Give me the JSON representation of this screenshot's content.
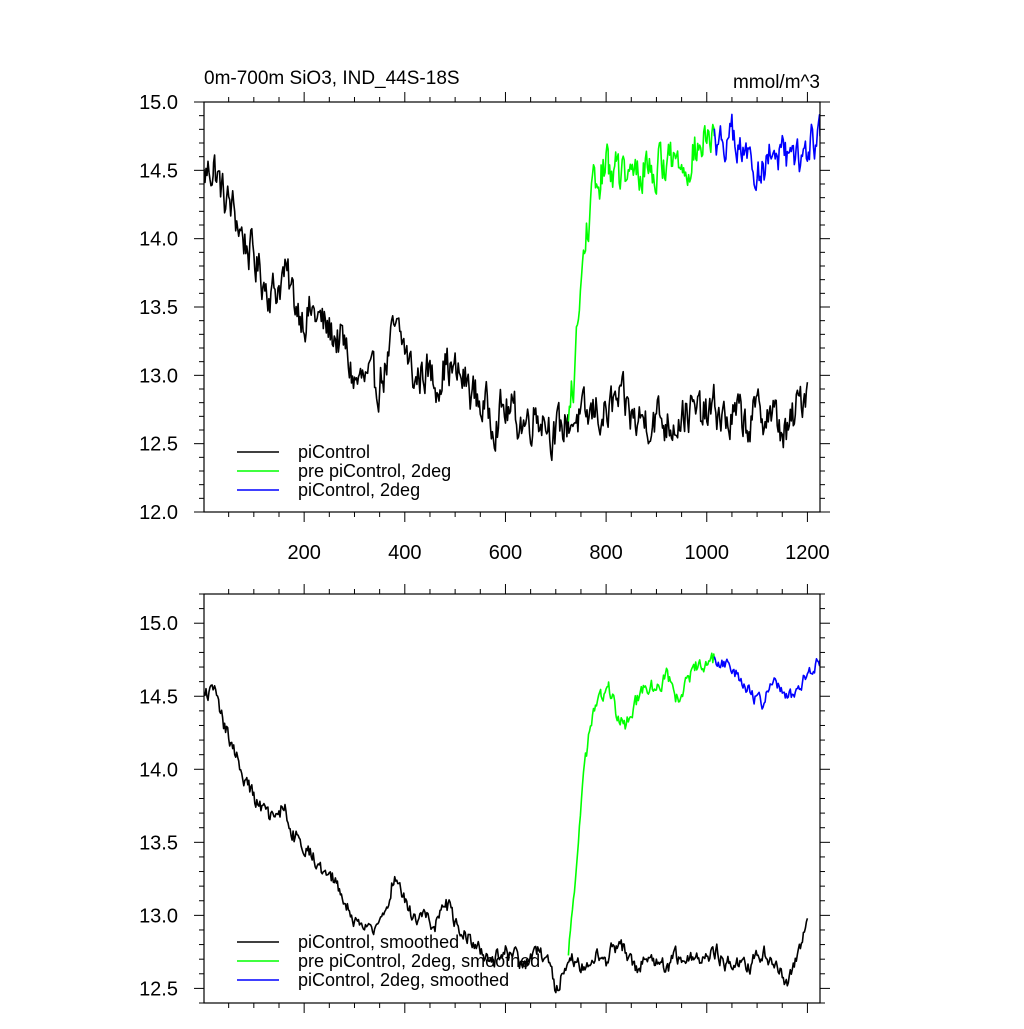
{
  "figure": {
    "title_left": "0m-700m SiO3, IND_44S-18S",
    "title_right": "mmol/m^3"
  },
  "chart_data": [
    {
      "type": "line",
      "panel": "top",
      "title": "0m-700m SiO3, IND_44S-18S",
      "unit": "mmol/m^3",
      "xlim": [
        1,
        1225
      ],
      "ylim": [
        12.0,
        15.0
      ],
      "xticks": [
        200,
        400,
        600,
        800,
        1000,
        1200
      ],
      "yticks": [
        12.0,
        12.5,
        13.0,
        13.5,
        14.0,
        14.5,
        15.0
      ],
      "ytick_labels": [
        "12.0",
        "12.5",
        "13.0",
        "13.5",
        "14.0",
        "14.5",
        "15.0"
      ],
      "legend_position": "bottom-left",
      "series": [
        {
          "name": "piControl",
          "color": "#000000",
          "noise": 0.14,
          "x": [
            1,
            20,
            40,
            60,
            80,
            100,
            120,
            140,
            160,
            180,
            200,
            220,
            240,
            260,
            280,
            300,
            320,
            340,
            360,
            380,
            400,
            420,
            440,
            460,
            480,
            500,
            520,
            540,
            560,
            580,
            600,
            620,
            640,
            660,
            680,
            700,
            720,
            740,
            760,
            780,
            800,
            820,
            840,
            860,
            880,
            900,
            920,
            940,
            960,
            980,
            1000,
            1020,
            1040,
            1060,
            1080,
            1100,
            1120,
            1140,
            1160,
            1180,
            1200
          ],
          "values": [
            14.45,
            14.55,
            14.3,
            14.2,
            14.0,
            13.85,
            13.7,
            13.6,
            13.75,
            13.55,
            13.45,
            13.45,
            13.35,
            13.3,
            13.2,
            12.95,
            12.95,
            12.9,
            13.05,
            13.3,
            13.2,
            12.95,
            13.05,
            12.95,
            13.1,
            13.0,
            12.95,
            12.85,
            12.75,
            12.7,
            12.75,
            12.7,
            12.65,
            12.75,
            12.7,
            12.55,
            12.65,
            12.7,
            12.65,
            12.75,
            12.7,
            12.8,
            12.75,
            12.65,
            12.7,
            12.7,
            12.65,
            12.7,
            12.75,
            12.7,
            12.7,
            12.75,
            12.65,
            12.7,
            12.65,
            12.7,
            12.75,
            12.65,
            12.55,
            12.75,
            12.95
          ]
        },
        {
          "name": "pre piControl, 2deg",
          "color": "#00ff00",
          "noise": 0.14,
          "x": [
            725,
            735,
            745,
            755,
            765,
            775,
            790,
            805,
            820,
            840,
            860,
            880,
            900,
            920,
            940,
            960,
            980,
            1000,
            1015
          ],
          "values": [
            12.6,
            12.95,
            13.4,
            13.85,
            14.15,
            14.3,
            14.45,
            14.55,
            14.5,
            14.4,
            14.45,
            14.55,
            14.5,
            14.6,
            14.55,
            14.6,
            14.65,
            14.7,
            14.75
          ]
        },
        {
          "name": "piControl, 2deg",
          "color": "#0000ff",
          "noise": 0.12,
          "x": [
            1015,
            1030,
            1050,
            1070,
            1090,
            1110,
            1130,
            1150,
            1170,
            1190,
            1210,
            1225
          ],
          "values": [
            14.75,
            14.7,
            14.75,
            14.6,
            14.55,
            14.5,
            14.65,
            14.6,
            14.5,
            14.6,
            14.7,
            14.75
          ]
        }
      ]
    },
    {
      "type": "line",
      "panel": "bottom",
      "xlim": [
        1,
        1225
      ],
      "ylim": [
        12.4,
        15.2
      ],
      "xticks": [
        200,
        400,
        600,
        800,
        1000,
        1200
      ],
      "yticks": [
        12.5,
        13.0,
        13.5,
        14.0,
        14.5,
        15.0
      ],
      "ytick_labels": [
        "12.5",
        "13.0",
        "13.5",
        "14.0",
        "14.5",
        "15.0"
      ],
      "legend_position": "bottom-left",
      "series": [
        {
          "name": "piControl, smoothed",
          "color": "#000000",
          "noise": 0.05,
          "x": [
            1,
            20,
            40,
            60,
            80,
            100,
            120,
            140,
            160,
            180,
            200,
            220,
            240,
            260,
            280,
            300,
            320,
            340,
            360,
            380,
            400,
            420,
            440,
            460,
            480,
            500,
            520,
            540,
            560,
            580,
            600,
            620,
            640,
            660,
            680,
            700,
            720,
            740,
            760,
            780,
            800,
            820,
            840,
            860,
            880,
            900,
            920,
            940,
            960,
            980,
            1000,
            1020,
            1040,
            1060,
            1080,
            1100,
            1120,
            1140,
            1160,
            1180,
            1200
          ],
          "values": [
            14.5,
            14.55,
            14.3,
            14.15,
            13.95,
            13.8,
            13.7,
            13.65,
            13.75,
            13.55,
            13.45,
            13.4,
            13.3,
            13.25,
            13.1,
            12.95,
            12.95,
            12.9,
            13.0,
            13.3,
            13.1,
            12.95,
            13.0,
            12.95,
            13.1,
            12.95,
            12.9,
            12.8,
            12.75,
            12.7,
            12.75,
            12.7,
            12.65,
            12.75,
            12.7,
            12.5,
            12.65,
            12.7,
            12.65,
            12.75,
            12.7,
            12.8,
            12.75,
            12.65,
            12.7,
            12.7,
            12.65,
            12.7,
            12.75,
            12.7,
            12.7,
            12.75,
            12.65,
            12.7,
            12.65,
            12.7,
            12.75,
            12.65,
            12.55,
            12.7,
            12.98
          ]
        },
        {
          "name": "pre piControl, 2deg, smoothed",
          "color": "#00ff00",
          "noise": 0.05,
          "x": [
            725,
            735,
            745,
            755,
            765,
            775,
            790,
            805,
            820,
            840,
            860,
            880,
            900,
            920,
            940,
            960,
            980,
            1000,
            1015
          ],
          "values": [
            12.7,
            13.1,
            13.55,
            13.95,
            14.2,
            14.4,
            14.5,
            14.55,
            14.4,
            14.3,
            14.45,
            14.55,
            14.55,
            14.65,
            14.5,
            14.6,
            14.7,
            14.7,
            14.75
          ]
        },
        {
          "name": "piControl, 2deg, smoothed",
          "color": "#0000ff",
          "noise": 0.04,
          "x": [
            1015,
            1030,
            1050,
            1070,
            1090,
            1110,
            1130,
            1150,
            1170,
            1190,
            1210,
            1225
          ],
          "values": [
            14.75,
            14.7,
            14.7,
            14.6,
            14.5,
            14.45,
            14.6,
            14.55,
            14.5,
            14.6,
            14.7,
            14.75
          ]
        }
      ]
    }
  ]
}
